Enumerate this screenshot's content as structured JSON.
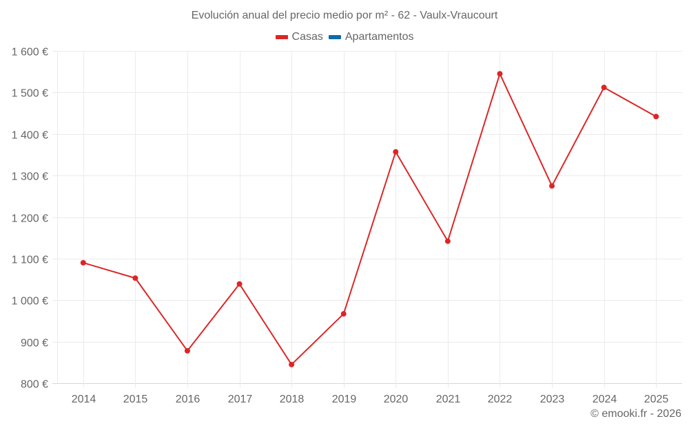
{
  "title": "Evolución anual del precio medio por m² - 62 - Vaulx-Vraucourt",
  "legend": [
    {
      "label": "Casas",
      "color": "#dc2626"
    },
    {
      "label": "Apartamentos",
      "color": "#0e6aa8"
    }
  ],
  "credit": "© emooki.fr - 2026",
  "chart_data": {
    "type": "line",
    "title": "Evolución anual del precio medio por m² - 62 - Vaulx-Vraucourt",
    "xlabel": "",
    "ylabel": "",
    "categories": [
      "2014",
      "2015",
      "2016",
      "2017",
      "2018",
      "2019",
      "2020",
      "2021",
      "2022",
      "2023",
      "2024",
      "2025"
    ],
    "series": [
      {
        "name": "Casas",
        "color": "#dc2626",
        "values": [
          1090,
          1053,
          878,
          1039,
          845,
          967,
          1357,
          1142,
          1545,
          1275,
          1512,
          1442
        ]
      },
      {
        "name": "Apartamentos",
        "color": "#0e6aa8",
        "values": []
      }
    ],
    "ylim": [
      800,
      1600
    ],
    "yticks": [
      800,
      900,
      1000,
      1100,
      1200,
      1300,
      1400,
      1500,
      1600
    ],
    "ytick_labels": [
      "800 €",
      "900 €",
      "1 000 €",
      "1 100 €",
      "1 200 €",
      "1 300 €",
      "1 400 €",
      "1 500 €",
      "1 600 €"
    ],
    "grid": true,
    "legend_position": "top"
  }
}
